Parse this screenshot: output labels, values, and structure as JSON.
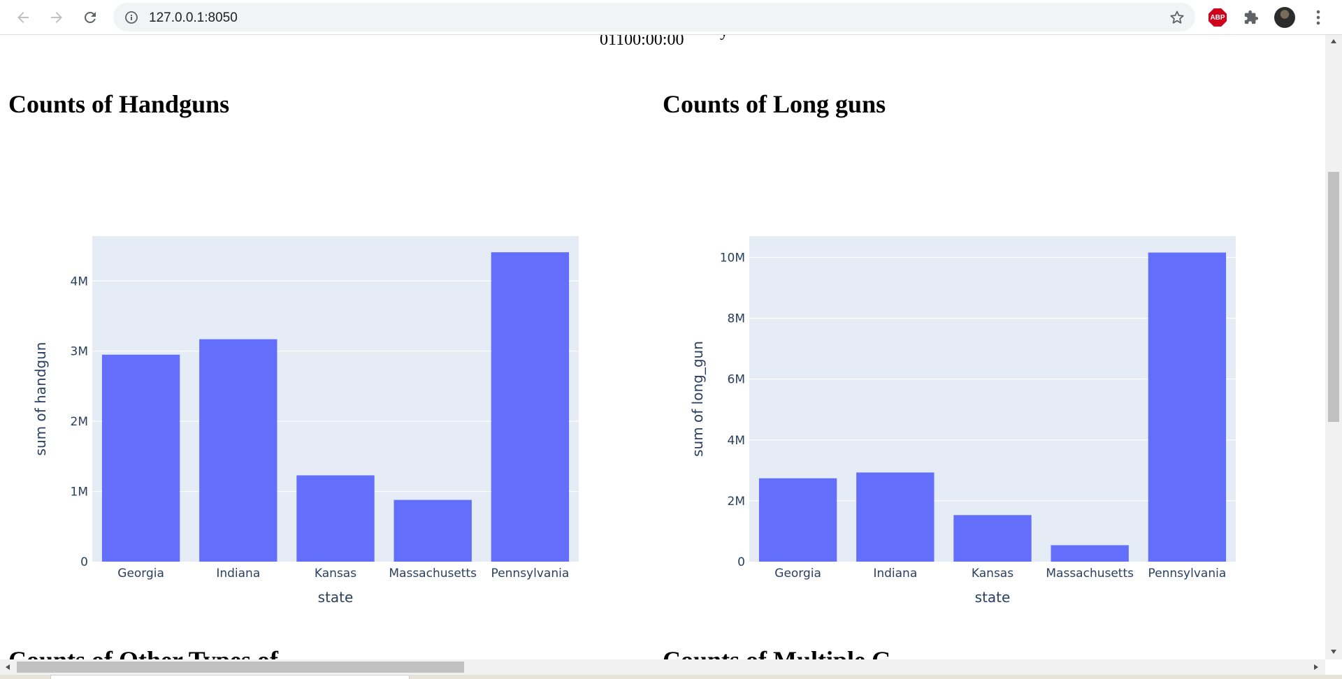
{
  "browser": {
    "url": "127.0.0.1:8050",
    "extension_abp_label": "ABP",
    "icons": [
      "back-arrow-icon",
      "forward-arrow-icon",
      "reload-icon",
      "info-icon",
      "star-icon",
      "puzzle-icon",
      "menu-dots-icon"
    ]
  },
  "page": {
    "clipped_text": "01100:00:00",
    "clipped_text2": "y",
    "lower_title_left": "Counts of Other Types of",
    "lower_title_right": "Counts of Multiple G"
  },
  "colors": {
    "bar": "#636efa",
    "plot_bg": "#e5ecf6",
    "tick_text": "#2a3f5f"
  },
  "charts": [
    {
      "heading": "Counts of Handguns",
      "chart_data": {
        "type": "bar",
        "categories": [
          "Georgia",
          "Indiana",
          "Kansas",
          "Massachusetts",
          "Pennsylvania"
        ],
        "values": [
          2950000,
          3170000,
          1230000,
          880000,
          4410000
        ],
        "xlabel": "state",
        "ylabel": "sum of handgun",
        "ylim": [
          0,
          4640000
        ],
        "yticks": [
          0,
          1000000,
          2000000,
          3000000,
          4000000
        ],
        "ytick_labels": [
          "0",
          "1M",
          "2M",
          "3M",
          "4M"
        ],
        "grid": true
      }
    },
    {
      "heading": "Counts of Long guns",
      "chart_data": {
        "type": "bar",
        "categories": [
          "Georgia",
          "Indiana",
          "Kansas",
          "Massachusetts",
          "Pennsylvania"
        ],
        "values": [
          2740000,
          2930000,
          1530000,
          540000,
          10160000
        ],
        "xlabel": "state",
        "ylabel": "sum of long_gun",
        "ylim": [
          0,
          10700000
        ],
        "yticks": [
          0,
          2000000,
          4000000,
          6000000,
          8000000,
          10000000
        ],
        "ytick_labels": [
          "0",
          "2M",
          "4M",
          "6M",
          "8M",
          "10M"
        ],
        "grid": true
      }
    }
  ]
}
